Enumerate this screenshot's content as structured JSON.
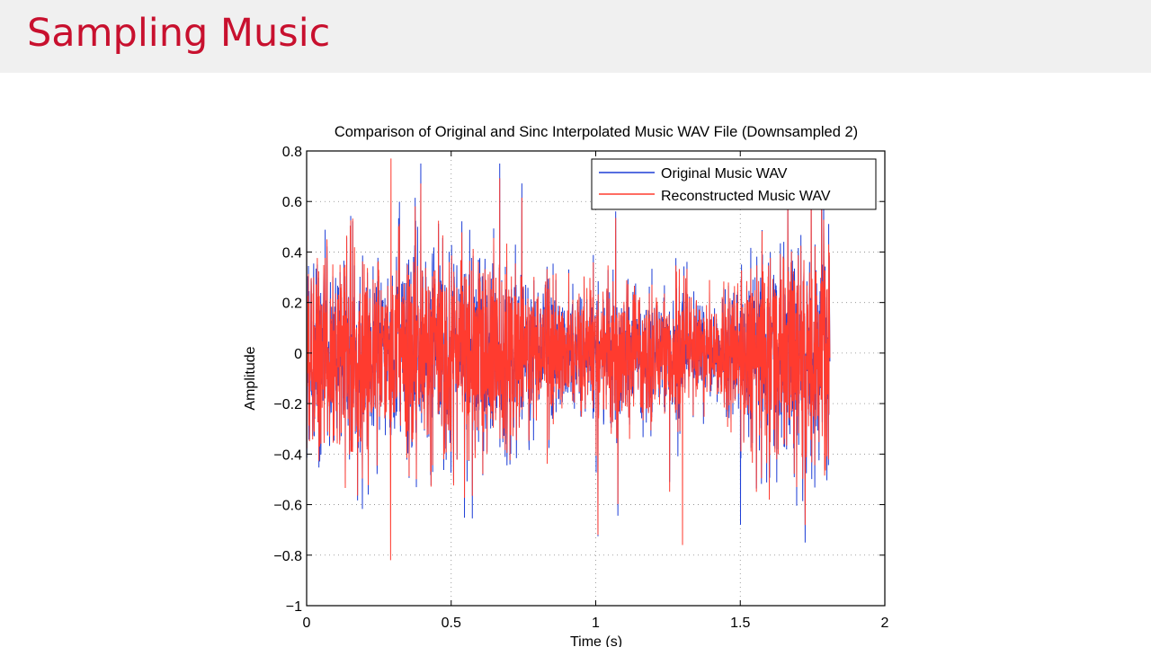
{
  "slide": {
    "title": "Sampling Music"
  },
  "chart_data": {
    "type": "line",
    "title": "Comparison of Original and Sinc Interpolated Music WAV File (Downsampled 2)",
    "xlabel": "Time (s)",
    "ylabel": "Amplitude",
    "xlim": [
      0,
      2
    ],
    "ylim": [
      -1,
      0.8
    ],
    "xticks": [
      "0",
      "0.5",
      "1",
      "1.5",
      "2"
    ],
    "yticks": [
      "0.8",
      "0.6",
      "0.4",
      "0.2",
      "0",
      "−0.2",
      "−0.4",
      "−0.6",
      "−0.8",
      "−1"
    ],
    "grid": true,
    "legend_position": "top-right",
    "signal_duration_s": 1.81,
    "signal_extremes": {
      "min": -0.82,
      "max": 0.77
    },
    "series": [
      {
        "name": "Original Music WAV",
        "color": "#1f3fd6"
      },
      {
        "name": "Reconstructed Music WAV",
        "color": "#ff3b2f"
      }
    ]
  }
}
